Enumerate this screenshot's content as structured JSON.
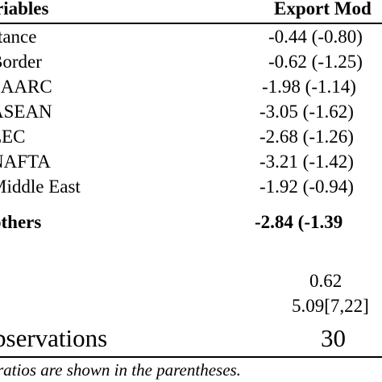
{
  "table": {
    "header": {
      "variables_label": "riables",
      "export_label": "Export Mod"
    },
    "rows": [
      {
        "name": "stance",
        "value": "-0.44 (-0.80)"
      },
      {
        "name": "Border",
        "value": "-0.62 (-1.25)"
      },
      {
        "name": "SAARC",
        "value": "-1.98 (-1.14)"
      },
      {
        "name": "ASEAN",
        "value": "-3.05 (-1.62)"
      },
      {
        "name": "EEC",
        "value": "-2.68 (-1.26)"
      },
      {
        "name": "NAFTA",
        "value": "-3.21 (-1.42)"
      },
      {
        "name": "Middle East",
        "value": "-1.92 (-0.94)"
      }
    ],
    "others": {
      "name": "others",
      "value": "-2.84 (-1.39"
    },
    "stats": {
      "r_squared": "0.62",
      "f_stat": "5.09[7,22]"
    },
    "observations": {
      "label": "bservations",
      "value": "30"
    }
  },
  "footnote": "ratios are shown in the parentheses."
}
